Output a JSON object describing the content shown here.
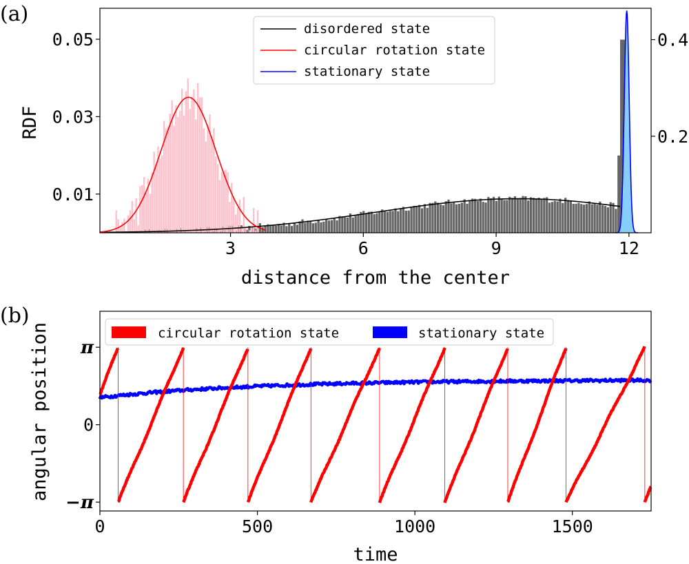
{
  "chart_data": [
    {
      "panel_label": "(a)",
      "type": "bar",
      "xlabel": "distance from the center",
      "ylabel": "RDF",
      "xlim": [
        0.05,
        12.5
      ],
      "ylim": [
        0.0,
        0.058
      ],
      "xticks": [
        "3",
        "6",
        "9",
        "12"
      ],
      "xtick_values": [
        3,
        6,
        9,
        12
      ],
      "yticks": [
        "0.01",
        "0.03",
        "0.05"
      ],
      "ytick_values": [
        0.01,
        0.03,
        0.05
      ],
      "y2lim": [
        0.0,
        0.465
      ],
      "y2ticks": [
        "0.2",
        "0.4"
      ],
      "y2tick_values": [
        0.2,
        0.4
      ],
      "legend_position": "upper-center",
      "series": [
        {
          "name": "disordered state",
          "line_color": "#000000",
          "bar_color": "#666666",
          "histogram_x_range": [
            1.0,
            11.8
          ],
          "fit_peak_x": 9.5,
          "fit_peak_y": 0.0088,
          "fit_width": 3.2,
          "histogram_noise": 0.0008
        },
        {
          "name": "circular rotation state",
          "line_color": "#ff0000",
          "bar_color": "#ffc0cb",
          "histogram_x_range": [
            0.4,
            3.6
          ],
          "fit_peak_x": 2.05,
          "fit_peak_y": 0.035,
          "fit_width": 0.62,
          "histogram_noise": 0.0055
        },
        {
          "name": "stationary state",
          "line_color": "#0000ff",
          "fill_color": "#87cefa",
          "axis": "right",
          "fit_peak_x": 11.95,
          "fit_peak_y": 0.46,
          "fit_width": 0.055
        }
      ],
      "annotation": {
        "gray_spike_x": 11.88,
        "gray_spike_right_axis_value": 0.4
      }
    },
    {
      "panel_label": "(b)",
      "type": "scatter",
      "xlabel": "time",
      "ylabel": "angular position",
      "xlim": [
        0,
        1750
      ],
      "ylim": [
        -3.5,
        4.6
      ],
      "xticks": [
        "0",
        "500",
        "1000",
        "1500"
      ],
      "xtick_values": [
        0,
        500,
        1000,
        1500
      ],
      "yticks": [
        "−π",
        "0",
        "π"
      ],
      "ytick_values": [
        -3.14159,
        0,
        3.14159
      ],
      "legend_position": "upper",
      "series": [
        {
          "name": "circular rotation state",
          "color": "#ff0000",
          "wrap_times": [
            58,
            265,
            470,
            670,
            888,
            1095,
            1295,
            1480,
            1730
          ],
          "start_angle": 1.2
        },
        {
          "name": "stationary state",
          "color": "#0000ff",
          "start_angle": 1.1,
          "end_angle": 1.8
        }
      ]
    }
  ]
}
